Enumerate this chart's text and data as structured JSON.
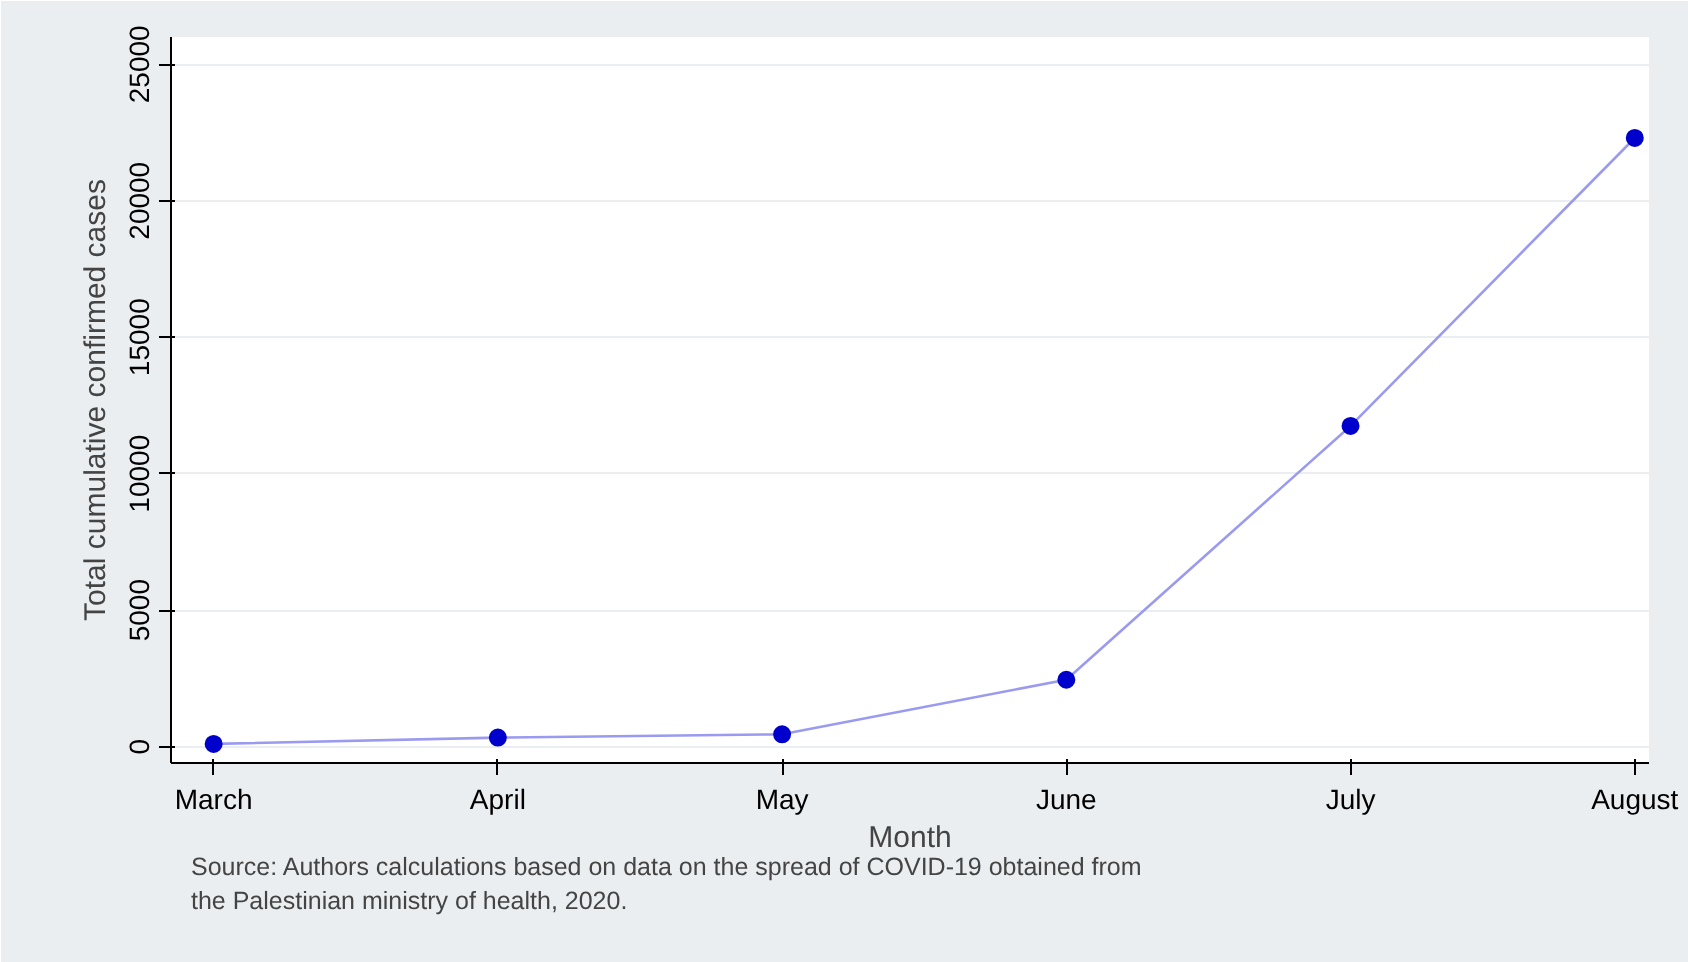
{
  "chart_data": {
    "type": "line",
    "xlabel": "Month",
    "ylabel": "Total cumulative confirmed cases",
    "categories": [
      "March",
      "April",
      "May",
      "June",
      "July",
      "August"
    ],
    "series": [
      {
        "color": "#0000cc",
        "values": [
          100,
          330,
          450,
          2450,
          11750,
          22300
        ]
      }
    ],
    "ylim": [
      -600,
      26000
    ],
    "yticks": [
      0,
      5000,
      10000,
      15000,
      20000,
      25000
    ],
    "grid": "y",
    "marker": "circle",
    "annotations": [
      "Source:  Authors calculations based on data on the spread of COVID-19 obtained from\nthe Palestinian ministry of health, 2020."
    ]
  }
}
